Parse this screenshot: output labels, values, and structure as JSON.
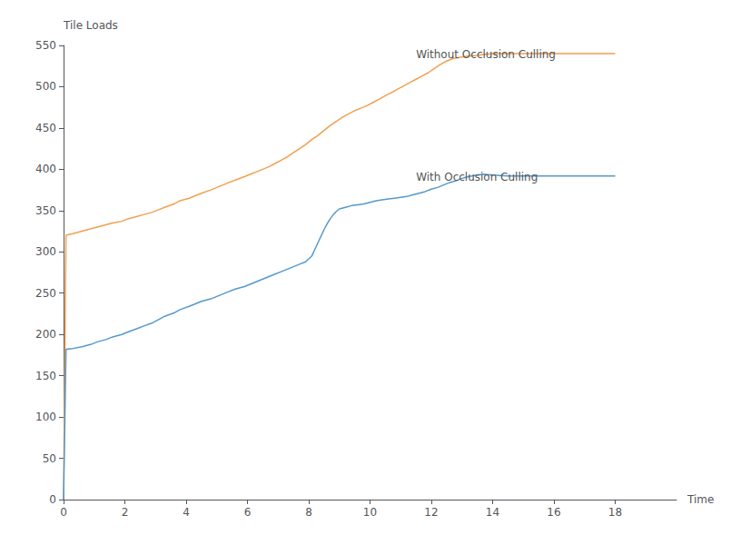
{
  "chart_data": {
    "type": "line",
    "x_label": "Time",
    "y_label": "Tile Loads",
    "xlim": [
      0,
      20
    ],
    "ylim": [
      0,
      550
    ],
    "xticks": [
      0,
      2,
      4,
      6,
      8,
      10,
      12,
      14,
      16,
      18
    ],
    "yticks": [
      0,
      50,
      100,
      150,
      200,
      250,
      300,
      350,
      400,
      450,
      500,
      550
    ],
    "grid": false,
    "series": [
      {
        "color": "#f0a050",
        "x": [
          0.0,
          0.08,
          0.3,
          0.6,
          0.9,
          1.1,
          1.4,
          1.6,
          1.9,
          2.1,
          2.4,
          2.6,
          2.9,
          3.1,
          3.3,
          3.6,
          3.8,
          4.1,
          4.3,
          4.5,
          4.8,
          5.0,
          5.2,
          5.4,
          5.6,
          5.9,
          6.1,
          6.3,
          6.5,
          6.7,
          6.9,
          7.1,
          7.3,
          7.5,
          7.7,
          7.9,
          8.1,
          8.3,
          8.5,
          8.7,
          8.9,
          9.1,
          9.3,
          9.5,
          9.7,
          9.9,
          10.1,
          10.3,
          10.5,
          10.7,
          10.9,
          11.1,
          11.3,
          11.5,
          11.7,
          11.9,
          12.1,
          12.3,
          12.5,
          12.7,
          13.0,
          13.2,
          13.5,
          13.7,
          14.0,
          14.5,
          15.0,
          15.5,
          16.0,
          16.5,
          17.0,
          17.5,
          18.0
        ],
        "values": [
          0,
          320,
          322,
          325,
          328,
          330,
          333,
          335,
          337,
          340,
          343,
          345,
          348,
          351,
          354,
          358,
          362,
          365,
          368,
          371,
          375,
          378,
          381,
          384,
          387,
          391,
          394,
          397,
          400,
          403,
          407,
          411,
          415,
          420,
          425,
          430,
          436,
          441,
          447,
          453,
          458,
          463,
          467,
          471,
          474,
          477,
          481,
          485,
          489,
          493,
          497,
          501,
          505,
          509,
          513,
          517,
          522,
          527,
          531,
          534,
          536,
          537,
          538,
          539,
          540,
          540,
          540,
          540,
          540,
          540,
          540,
          540,
          540
        ]
      },
      {
        "color": "#5599cc",
        "x": [
          0.0,
          0.08,
          0.3,
          0.6,
          0.9,
          1.1,
          1.4,
          1.6,
          1.9,
          2.1,
          2.4,
          2.6,
          2.9,
          3.1,
          3.3,
          3.6,
          3.8,
          4.1,
          4.3,
          4.5,
          4.8,
          5.0,
          5.2,
          5.4,
          5.6,
          5.9,
          6.1,
          6.3,
          6.5,
          6.7,
          6.9,
          7.1,
          7.3,
          7.5,
          7.7,
          7.9,
          8.1,
          8.2,
          8.3,
          8.4,
          8.5,
          8.6,
          8.7,
          8.8,
          8.9,
          9.0,
          9.2,
          9.4,
          9.6,
          9.8,
          10.0,
          10.2,
          10.4,
          10.6,
          10.8,
          11.0,
          11.2,
          11.4,
          11.6,
          11.8,
          12.0,
          12.2,
          12.4,
          12.6,
          12.8,
          13.0,
          13.2,
          13.5,
          13.7,
          14.0,
          14.5,
          15.0,
          15.5,
          16.0,
          16.5,
          17.0,
          17.5,
          18.0
        ],
        "values": [
          0,
          182,
          183,
          185,
          188,
          191,
          194,
          197,
          200,
          203,
          207,
          210,
          214,
          218,
          222,
          226,
          230,
          234,
          237,
          240,
          243,
          246,
          249,
          252,
          255,
          258,
          261,
          264,
          267,
          270,
          273,
          276,
          279,
          282,
          285,
          288,
          295,
          303,
          311,
          319,
          327,
          334,
          340,
          345,
          349,
          352,
          354,
          356,
          357,
          358,
          360,
          362,
          363,
          364,
          365,
          366,
          367,
          369,
          371,
          373,
          376,
          378,
          381,
          384,
          386,
          389,
          391,
          393,
          394,
          393,
          392,
          392,
          392,
          392,
          392,
          392,
          392,
          392
        ]
      }
    ],
    "annotations": [
      {
        "text": "Without Occlusion Culling",
        "x": 11.5,
        "y": 527
      },
      {
        "text": "With Occlusion Culling",
        "x": 11.5,
        "y": 378
      }
    ]
  }
}
